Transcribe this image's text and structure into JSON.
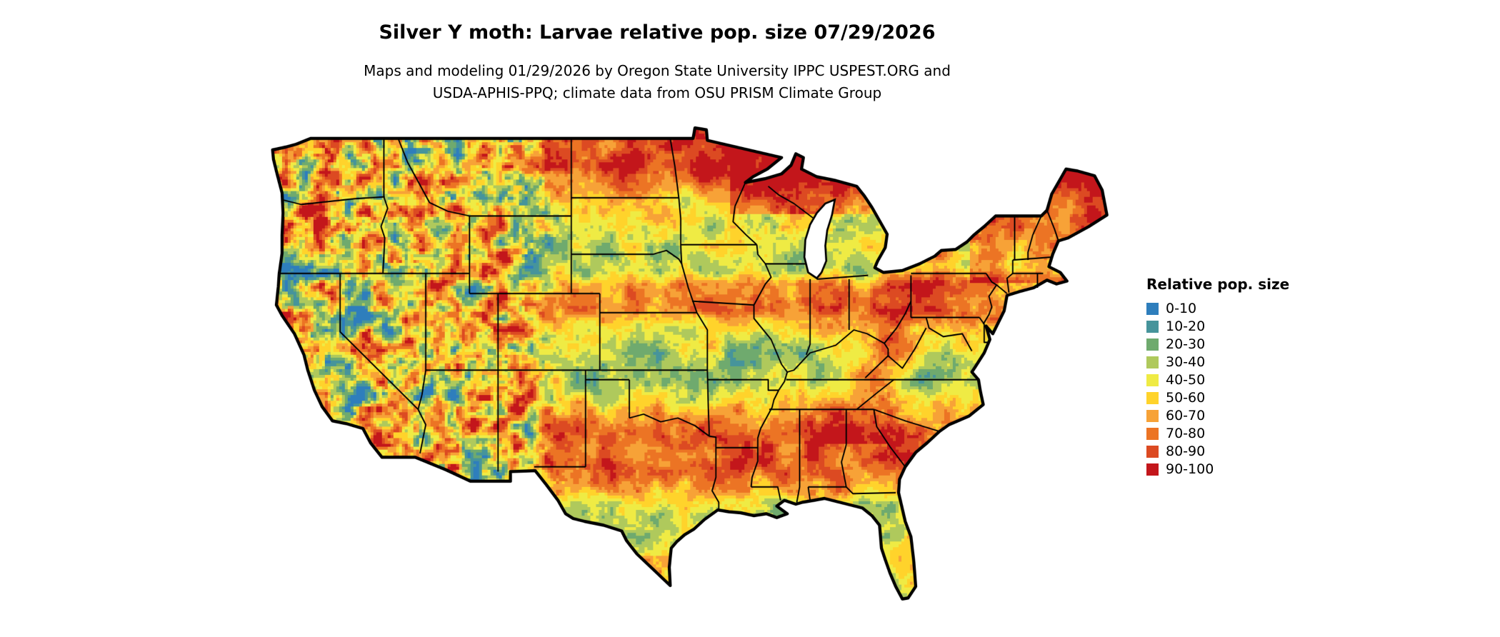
{
  "header": {
    "title": "Silver Y moth: Larvae relative pop. size 07/29/2026",
    "subtitle_line1": "Maps and modeling 01/29/2026 by Oregon State University IPPC USPEST.ORG and",
    "subtitle_line2": "USDA-APHIS-PPQ; climate data from OSU PRISM Climate Group"
  },
  "legend": {
    "title": "Relative pop. size",
    "items": [
      {
        "label": "0-10",
        "color": "#2E7EBC"
      },
      {
        "label": "10-20",
        "color": "#46949B"
      },
      {
        "label": "20-30",
        "color": "#6FAA6E"
      },
      {
        "label": "30-40",
        "color": "#AFC95C"
      },
      {
        "label": "40-50",
        "color": "#EFEB44"
      },
      {
        "label": "50-60",
        "color": "#FFD32B"
      },
      {
        "label": "60-70",
        "color": "#F7A237"
      },
      {
        "label": "70-80",
        "color": "#EC7424"
      },
      {
        "label": "80-90",
        "color": "#DC4A22"
      },
      {
        "label": "90-100",
        "color": "#C3161B"
      }
    ]
  },
  "map": {
    "outline_color": "#000000",
    "water_color": "#FFFFFF",
    "background": "#FFFFFF"
  }
}
